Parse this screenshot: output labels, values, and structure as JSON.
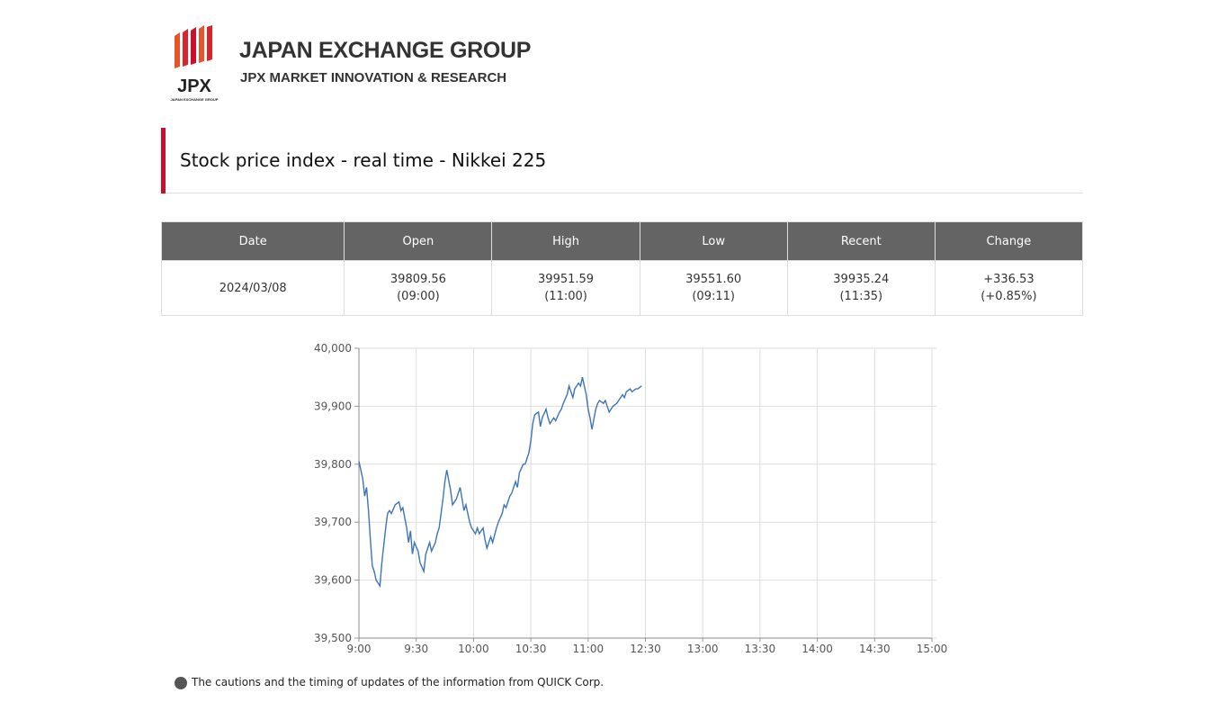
{
  "header": {
    "logo_text": "JPX",
    "logo_small": "JAPAN EXCHANGE GROUP",
    "title": "JAPAN EXCHANGE GROUP",
    "subtitle": "JPX MARKET INNOVATION & RESEARCH"
  },
  "page_title": "Stock price index - real time - Nikkei 225",
  "table": {
    "headers": [
      "Date",
      "Open",
      "High",
      "Low",
      "Recent",
      "Change"
    ],
    "rows": [
      [
        "2024/03/08",
        [
          "39809.56",
          "(09:00)"
        ],
        [
          "39951.59",
          "(11:00)"
        ],
        [
          "39551.60",
          "(09:11)"
        ],
        [
          "39935.24",
          "(11:35)"
        ],
        [
          "+336.53",
          "(+0.85%)"
        ]
      ]
    ]
  },
  "chart_data": {
    "type": "line",
    "x": [
      0,
      2,
      3,
      4,
      5,
      6,
      7,
      8,
      9,
      11,
      12,
      14,
      15,
      16,
      17,
      19,
      21,
      22,
      23,
      25,
      26,
      27,
      28,
      29,
      31,
      32,
      34,
      35,
      37,
      38,
      40,
      41,
      42,
      44,
      45,
      46,
      48,
      49,
      51,
      52,
      53,
      55,
      56,
      58,
      59,
      61,
      62,
      63,
      65,
      66,
      67,
      69,
      70,
      72,
      73,
      75,
      76,
      77,
      79,
      80,
      82,
      83,
      84,
      86,
      87,
      89,
      90,
      91,
      92,
      94,
      95,
      96,
      98,
      99,
      100,
      102,
      103,
      105,
      106,
      107,
      109,
      110,
      112,
      113,
      115,
      116,
      117,
      119,
      120,
      121,
      122,
      124,
      125,
      126,
      128,
      129,
      131,
      132,
      133,
      135,
      136,
      138,
      139,
      140,
      142,
      143,
      145,
      146,
      148
    ],
    "series": [
      {
        "name": "Nikkei 225",
        "color": "#3d74b8",
        "values": [
          39805,
          39775,
          39745,
          39760,
          39720,
          39670,
          39625,
          39615,
          39600,
          39590,
          39630,
          39690,
          39715,
          39720,
          39715,
          39730,
          39735,
          39720,
          39725,
          39690,
          39665,
          39685,
          39645,
          39665,
          39650,
          39630,
          39615,
          39645,
          39665,
          39650,
          39665,
          39680,
          39690,
          39740,
          39770,
          39790,
          39755,
          39730,
          39740,
          39750,
          39760,
          39720,
          39730,
          39700,
          39690,
          39680,
          39690,
          39680,
          39690,
          39670,
          39655,
          39675,
          39665,
          39690,
          39700,
          39715,
          39730,
          39725,
          39745,
          39750,
          39770,
          39760,
          39785,
          39800,
          39800,
          39820,
          39840,
          39870,
          39885,
          39890,
          39865,
          39880,
          39895,
          39880,
          39870,
          39880,
          39875,
          39890,
          39895,
          39905,
          39920,
          39935,
          39915,
          39930,
          39940,
          39935,
          39950,
          39920,
          39895,
          39880,
          39860,
          39895,
          39905,
          39910,
          39905,
          39910,
          39890,
          39895,
          39900,
          39905,
          39910,
          39920,
          39915,
          39925,
          39930,
          39925,
          39930,
          39930,
          39935
        ]
      }
    ],
    "xlim": [
      0,
      300
    ],
    "xticks": [
      {
        "value": 0,
        "label": "9:00"
      },
      {
        "value": 30,
        "label": "9:30"
      },
      {
        "value": 60,
        "label": "10:00"
      },
      {
        "value": 90,
        "label": "10:30"
      },
      {
        "value": 120,
        "label": "11:00"
      },
      {
        "value": 150,
        "label": "12:30"
      },
      {
        "value": 180,
        "label": "13:00"
      },
      {
        "value": 210,
        "label": "13:30"
      },
      {
        "value": 240,
        "label": "14:00"
      },
      {
        "value": 270,
        "label": "14:30"
      },
      {
        "value": 300,
        "label": "15:00"
      }
    ],
    "ylim": [
      39500,
      40000
    ],
    "yticks": [
      {
        "value": 39500,
        "label": "39,500"
      },
      {
        "value": 39600,
        "label": "39,600"
      },
      {
        "value": 39700,
        "label": "39,700"
      },
      {
        "value": 39800,
        "label": "39,800"
      },
      {
        "value": 39900,
        "label": "39,900"
      },
      {
        "value": 40000,
        "label": "40,000"
      }
    ],
    "grid": true
  },
  "footer": "The cautions and the timing of updates of the information from QUICK Corp."
}
